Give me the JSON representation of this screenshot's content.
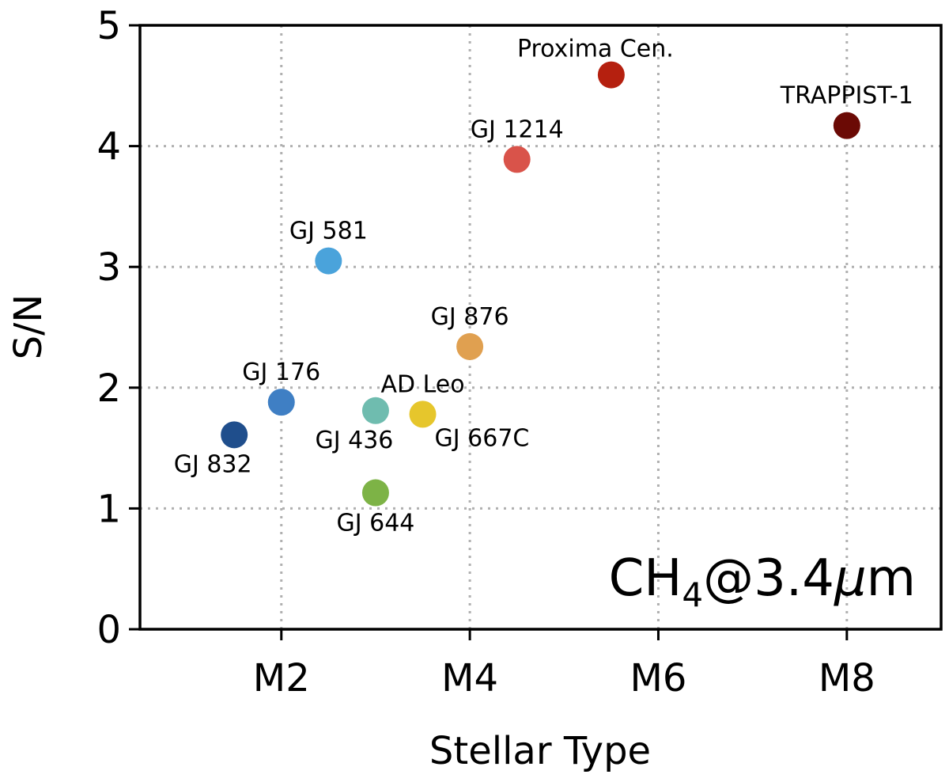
{
  "chart_data": {
    "type": "scatter",
    "title": "",
    "xlabel": "Stellar Type",
    "ylabel": "S/N",
    "xlim": [
      0.5,
      9.0
    ],
    "ylim": [
      0,
      5
    ],
    "x_ticks": [
      {
        "value": 2,
        "label": "M2"
      },
      {
        "value": 4,
        "label": "M4"
      },
      {
        "value": 6,
        "label": "M6"
      },
      {
        "value": 8,
        "label": "M8"
      }
    ],
    "y_ticks": [
      {
        "value": 0,
        "label": "0"
      },
      {
        "value": 1,
        "label": "1"
      },
      {
        "value": 2,
        "label": "2"
      },
      {
        "value": 3,
        "label": "3"
      },
      {
        "value": 4,
        "label": "4"
      },
      {
        "value": 5,
        "label": "5"
      }
    ],
    "grid": true,
    "annotation": {
      "main": "CH",
      "sub": "4",
      "mid": "@3.4",
      "mu": "μ",
      "tail": "m"
    },
    "points": [
      {
        "name": "GJ 832",
        "x": 1.5,
        "y": 1.61,
        "color": "#1f4e8c",
        "label_pos": "below-left"
      },
      {
        "name": "GJ 176",
        "x": 2.0,
        "y": 1.88,
        "color": "#3f7fc4",
        "label_pos": "above"
      },
      {
        "name": "GJ 581",
        "x": 2.5,
        "y": 3.05,
        "color": "#4aa3db",
        "label_pos": "above"
      },
      {
        "name": "GJ 436",
        "x": 3.0,
        "y": 1.81,
        "color": "#6fbcaf",
        "label_pos": "below-left"
      },
      {
        "name": "GJ 644",
        "x": 3.0,
        "y": 1.13,
        "color": "#7db346",
        "label_pos": "below"
      },
      {
        "name": "GJ 667C",
        "x": 3.5,
        "y": 1.78,
        "color": "#e6c62c",
        "label_pos": "below-right"
      },
      {
        "name": "AD Leo",
        "x": 3.5,
        "y": 1.78,
        "color": "#e6c62c",
        "label_pos": "above"
      },
      {
        "name": "GJ 876",
        "x": 4.0,
        "y": 2.34,
        "color": "#e0a050",
        "label_pos": "above"
      },
      {
        "name": "GJ 1214",
        "x": 4.5,
        "y": 3.89,
        "color": "#d9534a",
        "label_pos": "above"
      },
      {
        "name": "Proxima Cen.",
        "x": 5.5,
        "y": 4.59,
        "color": "#b5200f",
        "label_pos": "above-left"
      },
      {
        "name": "TRAPPIST-1",
        "x": 8.0,
        "y": 4.17,
        "color": "#6b0a05",
        "label_pos": "above"
      }
    ]
  }
}
